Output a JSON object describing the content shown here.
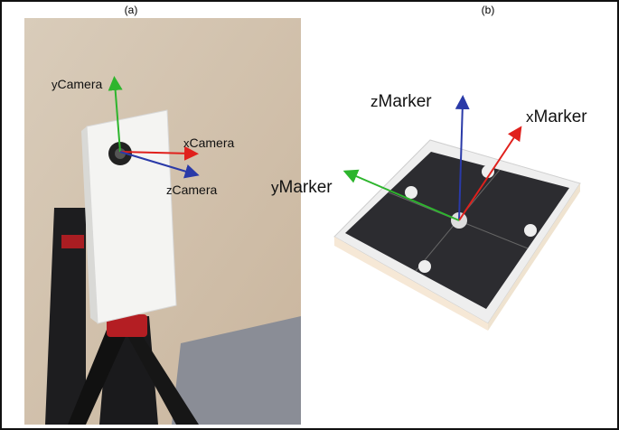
{
  "panels": [
    {
      "label": "(a)",
      "axes": [
        {
          "axis": "y",
          "frame": "Camera"
        },
        {
          "axis": "x",
          "frame": "Camera"
        },
        {
          "axis": "z",
          "frame": "Camera"
        }
      ]
    },
    {
      "label": "(b)",
      "axes": [
        {
          "axis": "z",
          "frame": "Marker"
        },
        {
          "axis": "x",
          "frame": "Marker"
        },
        {
          "axis": "y",
          "frame": "Marker"
        }
      ]
    }
  ]
}
